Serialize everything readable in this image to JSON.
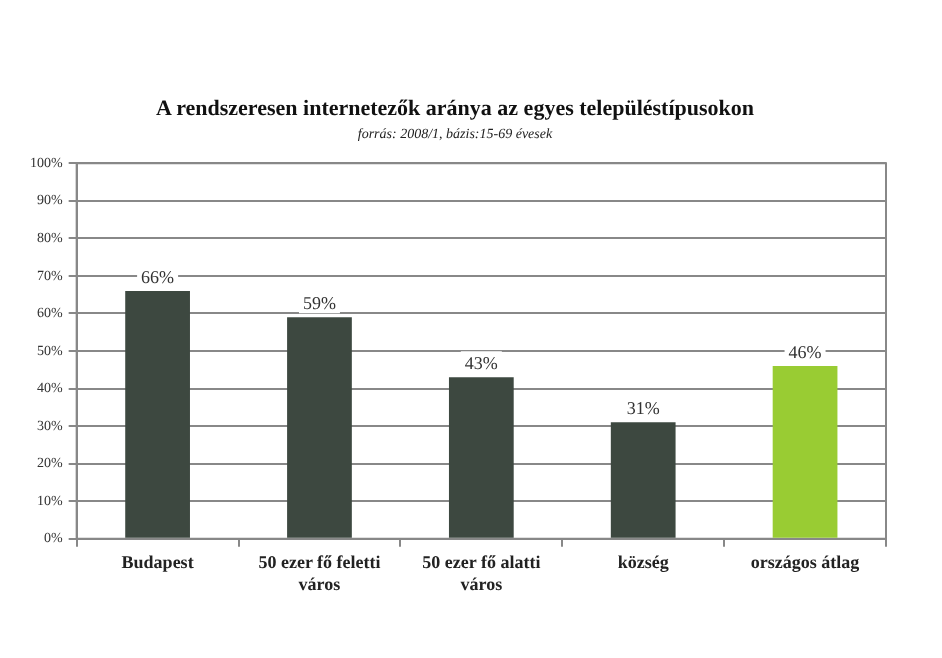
{
  "chart_data": {
    "type": "bar",
    "title": "A rendszeresen internetezők aránya az egyes településtípusokon",
    "subtitle": "forrás: 2008/1, bázis:15-69 évesek",
    "categories": [
      "Budapest",
      "50 ezer fő feletti város",
      "50 ezer fő alatti város",
      "község",
      "országos átlag"
    ],
    "values": [
      66,
      59,
      43,
      31,
      46
    ],
    "colors": [
      "#3d4840",
      "#3d4840",
      "#3d4840",
      "#3d4840",
      "#99cc33"
    ],
    "value_labels": [
      "66%",
      "59%",
      "43%",
      "31%",
      "46%"
    ],
    "ylim": [
      0,
      100
    ],
    "yticks": [
      {
        "value": 0,
        "label": "0%"
      },
      {
        "value": 10,
        "label": "10%"
      },
      {
        "value": 20,
        "label": "20%"
      },
      {
        "value": 30,
        "label": "30%"
      },
      {
        "value": 40,
        "label": "40%"
      },
      {
        "value": 50,
        "label": "50%"
      },
      {
        "value": 60,
        "label": "60%"
      },
      {
        "value": 70,
        "label": "70%"
      },
      {
        "value": 80,
        "label": "80%"
      },
      {
        "value": 90,
        "label": "90%"
      },
      {
        "value": 100,
        "label": "100%"
      }
    ],
    "grid": "y",
    "legend": false
  }
}
